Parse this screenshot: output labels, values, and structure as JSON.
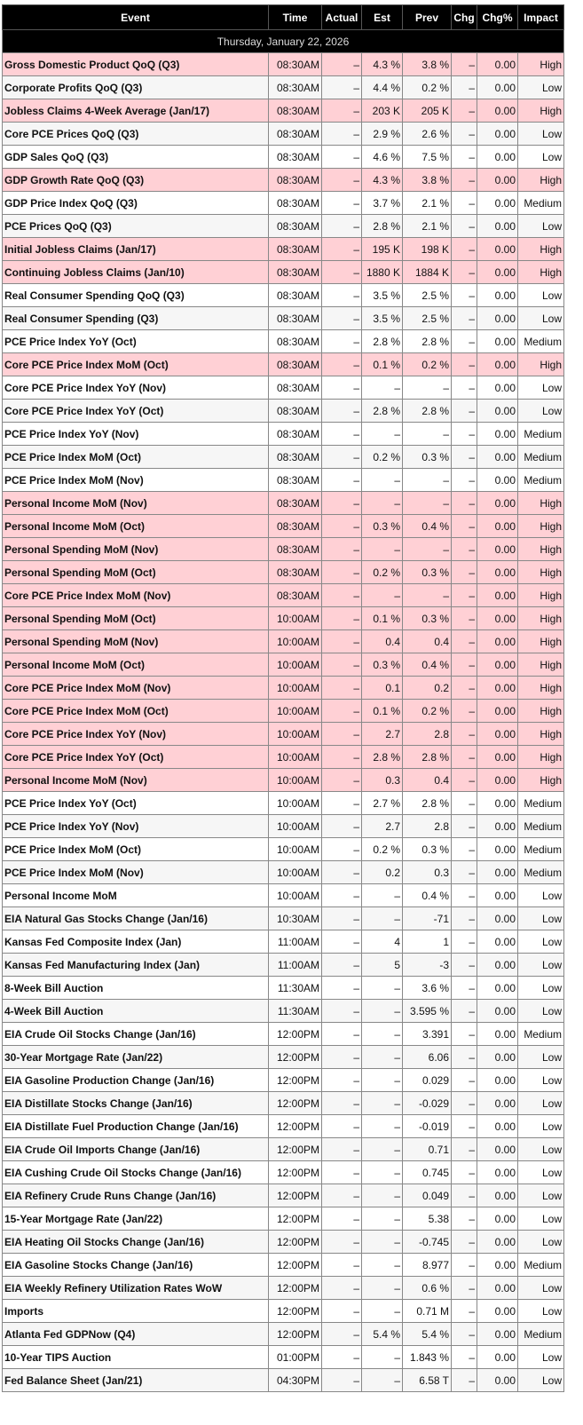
{
  "table": {
    "columns": [
      "Event",
      "Time",
      "Actual",
      "Est",
      "Prev",
      "Chg",
      "Chg%",
      "Impact"
    ],
    "date": "Thursday, January 22, 2026",
    "rows": [
      [
        "Gross Domestic Product QoQ (Q3)",
        "08:30AM",
        "–",
        "4.3 %",
        "3.8 %",
        "–",
        "0.00",
        "High"
      ],
      [
        "Corporate Profits QoQ (Q3)",
        "08:30AM",
        "–",
        "4.4 %",
        "0.2 %",
        "–",
        "0.00",
        "Low"
      ],
      [
        "Jobless Claims 4-Week Average (Jan/17)",
        "08:30AM",
        "–",
        "203 K",
        "205 K",
        "–",
        "0.00",
        "High"
      ],
      [
        "Core PCE Prices QoQ (Q3)",
        "08:30AM",
        "–",
        "2.9 %",
        "2.6 %",
        "–",
        "0.00",
        "Low"
      ],
      [
        "GDP Sales QoQ (Q3)",
        "08:30AM",
        "–",
        "4.6 %",
        "7.5 %",
        "–",
        "0.00",
        "Low"
      ],
      [
        "GDP Growth Rate QoQ (Q3)",
        "08:30AM",
        "–",
        "4.3 %",
        "3.8 %",
        "–",
        "0.00",
        "High"
      ],
      [
        "GDP Price Index QoQ (Q3)",
        "08:30AM",
        "–",
        "3.7 %",
        "2.1 %",
        "–",
        "0.00",
        "Medium"
      ],
      [
        "PCE Prices QoQ (Q3)",
        "08:30AM",
        "–",
        "2.8 %",
        "2.1 %",
        "–",
        "0.00",
        "Low"
      ],
      [
        "Initial Jobless Claims (Jan/17)",
        "08:30AM",
        "–",
        "195 K",
        "198 K",
        "–",
        "0.00",
        "High"
      ],
      [
        "Continuing Jobless Claims (Jan/10)",
        "08:30AM",
        "–",
        "1880 K",
        "1884 K",
        "–",
        "0.00",
        "High"
      ],
      [
        "Real Consumer Spending QoQ (Q3)",
        "08:30AM",
        "–",
        "3.5 %",
        "2.5 %",
        "–",
        "0.00",
        "Low"
      ],
      [
        "Real Consumer Spending (Q3)",
        "08:30AM",
        "–",
        "3.5 %",
        "2.5 %",
        "–",
        "0.00",
        "Low"
      ],
      [
        "PCE Price Index YoY (Oct)",
        "08:30AM",
        "–",
        "2.8 %",
        "2.8 %",
        "–",
        "0.00",
        "Medium"
      ],
      [
        "Core PCE Price Index MoM (Oct)",
        "08:30AM",
        "–",
        "0.1 %",
        "0.2 %",
        "–",
        "0.00",
        "High"
      ],
      [
        "Core PCE Price Index YoY (Nov)",
        "08:30AM",
        "–",
        "–",
        "–",
        "–",
        "0.00",
        "Low"
      ],
      [
        "Core PCE Price Index YoY (Oct)",
        "08:30AM",
        "–",
        "2.8 %",
        "2.8 %",
        "–",
        "0.00",
        "Low"
      ],
      [
        "PCE Price Index YoY (Nov)",
        "08:30AM",
        "–",
        "–",
        "–",
        "–",
        "0.00",
        "Medium"
      ],
      [
        "PCE Price Index MoM (Oct)",
        "08:30AM",
        "–",
        "0.2 %",
        "0.3 %",
        "–",
        "0.00",
        "Medium"
      ],
      [
        "PCE Price Index MoM (Nov)",
        "08:30AM",
        "–",
        "–",
        "–",
        "–",
        "0.00",
        "Medium"
      ],
      [
        "Personal Income MoM (Nov)",
        "08:30AM",
        "–",
        "–",
        "–",
        "–",
        "0.00",
        "High"
      ],
      [
        "Personal Income MoM (Oct)",
        "08:30AM",
        "–",
        "0.3 %",
        "0.4 %",
        "–",
        "0.00",
        "High"
      ],
      [
        "Personal Spending MoM (Nov)",
        "08:30AM",
        "–",
        "–",
        "–",
        "–",
        "0.00",
        "High"
      ],
      [
        "Personal Spending MoM (Oct)",
        "08:30AM",
        "–",
        "0.2 %",
        "0.3 %",
        "–",
        "0.00",
        "High"
      ],
      [
        "Core PCE Price Index MoM (Nov)",
        "08:30AM",
        "–",
        "–",
        "–",
        "–",
        "0.00",
        "High"
      ],
      [
        "Personal Spending MoM (Oct)",
        "10:00AM",
        "–",
        "0.1 %",
        "0.3 %",
        "–",
        "0.00",
        "High"
      ],
      [
        "Personal Spending MoM (Nov)",
        "10:00AM",
        "–",
        "0.4",
        "0.4",
        "–",
        "0.00",
        "High"
      ],
      [
        "Personal Income MoM (Oct)",
        "10:00AM",
        "–",
        "0.3 %",
        "0.4 %",
        "–",
        "0.00",
        "High"
      ],
      [
        "Core PCE Price Index MoM (Nov)",
        "10:00AM",
        "–",
        "0.1",
        "0.2",
        "–",
        "0.00",
        "High"
      ],
      [
        "Core PCE Price Index MoM (Oct)",
        "10:00AM",
        "–",
        "0.1 %",
        "0.2 %",
        "–",
        "0.00",
        "High"
      ],
      [
        "Core PCE Price Index YoY (Nov)",
        "10:00AM",
        "–",
        "2.7",
        "2.8",
        "–",
        "0.00",
        "High"
      ],
      [
        "Core PCE Price Index YoY (Oct)",
        "10:00AM",
        "–",
        "2.8 %",
        "2.8 %",
        "–",
        "0.00",
        "High"
      ],
      [
        "Personal Income MoM (Nov)",
        "10:00AM",
        "–",
        "0.3",
        "0.4",
        "–",
        "0.00",
        "High"
      ],
      [
        "PCE Price Index YoY (Oct)",
        "10:00AM",
        "–",
        "2.7 %",
        "2.8 %",
        "–",
        "0.00",
        "Medium"
      ],
      [
        "PCE Price Index YoY (Nov)",
        "10:00AM",
        "–",
        "2.7",
        "2.8",
        "–",
        "0.00",
        "Medium"
      ],
      [
        "PCE Price Index MoM (Oct)",
        "10:00AM",
        "–",
        "0.2 %",
        "0.3 %",
        "–",
        "0.00",
        "Medium"
      ],
      [
        "PCE Price Index MoM (Nov)",
        "10:00AM",
        "–",
        "0.2",
        "0.3",
        "–",
        "0.00",
        "Medium"
      ],
      [
        "Personal Income MoM",
        "10:00AM",
        "–",
        "–",
        "0.4 %",
        "–",
        "0.00",
        "Low"
      ],
      [
        "EIA Natural Gas Stocks Change (Jan/16)",
        "10:30AM",
        "–",
        "–",
        "-71",
        "–",
        "0.00",
        "Low"
      ],
      [
        "Kansas Fed Composite Index (Jan)",
        "11:00AM",
        "–",
        "4",
        "1",
        "–",
        "0.00",
        "Low"
      ],
      [
        "Kansas Fed Manufacturing Index (Jan)",
        "11:00AM",
        "–",
        "5",
        "-3",
        "–",
        "0.00",
        "Low"
      ],
      [
        "8-Week Bill Auction",
        "11:30AM",
        "–",
        "–",
        "3.6 %",
        "–",
        "0.00",
        "Low"
      ],
      [
        "4-Week Bill Auction",
        "11:30AM",
        "–",
        "–",
        "3.595 %",
        "–",
        "0.00",
        "Low"
      ],
      [
        "EIA Crude Oil Stocks Change (Jan/16)",
        "12:00PM",
        "–",
        "–",
        "3.391",
        "–",
        "0.00",
        "Medium"
      ],
      [
        "30-Year Mortgage Rate (Jan/22)",
        "12:00PM",
        "–",
        "–",
        "6.06",
        "–",
        "0.00",
        "Low"
      ],
      [
        "EIA Gasoline Production Change (Jan/16)",
        "12:00PM",
        "–",
        "–",
        "0.029",
        "–",
        "0.00",
        "Low"
      ],
      [
        "EIA Distillate Stocks Change (Jan/16)",
        "12:00PM",
        "–",
        "–",
        "-0.029",
        "–",
        "0.00",
        "Low"
      ],
      [
        "EIA Distillate Fuel Production Change (Jan/16)",
        "12:00PM",
        "–",
        "–",
        "-0.019",
        "–",
        "0.00",
        "Low"
      ],
      [
        "EIA Crude Oil Imports Change (Jan/16)",
        "12:00PM",
        "–",
        "–",
        "0.71",
        "–",
        "0.00",
        "Low"
      ],
      [
        "EIA Cushing Crude Oil Stocks Change (Jan/16)",
        "12:00PM",
        "–",
        "–",
        "0.745",
        "–",
        "0.00",
        "Low"
      ],
      [
        "EIA Refinery Crude Runs Change (Jan/16)",
        "12:00PM",
        "–",
        "–",
        "0.049",
        "–",
        "0.00",
        "Low"
      ],
      [
        "15-Year Mortgage Rate (Jan/22)",
        "12:00PM",
        "–",
        "–",
        "5.38",
        "–",
        "0.00",
        "Low"
      ],
      [
        "EIA Heating Oil Stocks Change (Jan/16)",
        "12:00PM",
        "–",
        "–",
        "-0.745",
        "–",
        "0.00",
        "Low"
      ],
      [
        "EIA Gasoline Stocks Change (Jan/16)",
        "12:00PM",
        "–",
        "–",
        "8.977",
        "–",
        "0.00",
        "Medium"
      ],
      [
        "EIA Weekly Refinery Utilization Rates WoW",
        "12:00PM",
        "–",
        "–",
        "0.6 %",
        "–",
        "0.00",
        "Low"
      ],
      [
        "Imports",
        "12:00PM",
        "–",
        "–",
        "0.71 M",
        "–",
        "0.00",
        "Low"
      ],
      [
        "Atlanta Fed GDPNow (Q4)",
        "12:00PM",
        "–",
        "5.4 %",
        "5.4 %",
        "–",
        "0.00",
        "Medium"
      ],
      [
        "10-Year TIPS Auction",
        "01:00PM",
        "–",
        "–",
        "1.843 %",
        "–",
        "0.00",
        "Low"
      ],
      [
        "Fed Balance Sheet (Jan/21)",
        "04:30PM",
        "–",
        "–",
        "6.58 T",
        "–",
        "0.00",
        "Low"
      ]
    ]
  }
}
